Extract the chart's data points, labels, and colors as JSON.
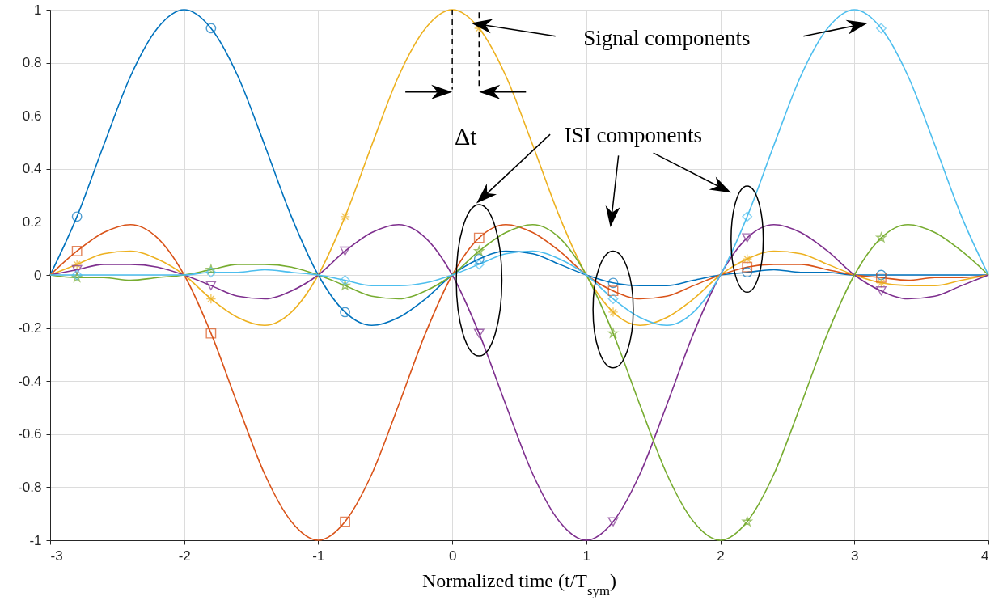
{
  "chart_data": {
    "type": "line",
    "xlabel": "Normalized time (t/T$_{sym}$)",
    "x": [
      -3,
      -2.8,
      -2.6,
      -2.4,
      -2.2,
      -2,
      -1.8,
      -1.6,
      -1.4,
      -1.2,
      -1,
      -0.8,
      -0.6,
      -0.4,
      -0.2,
      0,
      0.2,
      0.4,
      0.6,
      0.8,
      1,
      1.2,
      1.4,
      1.6,
      1.8,
      2,
      2.2,
      2.4,
      2.6,
      2.8,
      3,
      3.2,
      3.4,
      3.6,
      3.8,
      4
    ],
    "xlim": [
      -3,
      4
    ],
    "xticks": [
      -3,
      -2,
      -1,
      0,
      1,
      2,
      3,
      4
    ],
    "ylim": [
      -1,
      1
    ],
    "yticks": [
      -1,
      -0.8,
      -0.6,
      -0.4,
      -0.2,
      0,
      0.2,
      0.4,
      0.6,
      0.8,
      1
    ],
    "grid": true,
    "annotations": [
      {
        "text": "Signal components",
        "x": 0.2,
        "y": 0.93
      },
      "ISI components",
      "Δt"
    ],
    "series": [
      {
        "color": "#0072bd",
        "values": [
          0,
          0.22,
          0.49,
          0.75,
          0.93,
          1,
          0.93,
          0.75,
          0.49,
          0.22,
          0,
          -0.14,
          -0.19,
          -0.16,
          -0.09,
          0,
          0.06,
          0.09,
          0.08,
          0.04,
          0,
          -0.03,
          -0.04,
          -0.04,
          -0.02,
          0,
          0.01,
          0.02,
          0.01,
          0.01,
          0,
          0,
          0,
          0,
          0,
          0
        ]
      },
      {
        "color": "#d95319",
        "values": [
          0,
          0.09,
          0.16,
          0.19,
          0.14,
          0,
          -0.22,
          -0.49,
          -0.75,
          -0.93,
          -1,
          -0.93,
          -0.75,
          -0.49,
          -0.22,
          0,
          0.14,
          0.19,
          0.16,
          0.09,
          0,
          -0.06,
          -0.09,
          -0.08,
          -0.04,
          0,
          0.03,
          0.04,
          0.04,
          0.02,
          0,
          -0.01,
          -0.02,
          -0.01,
          -0.01,
          0
        ]
      },
      {
        "color": "#edb120",
        "values": [
          0,
          0.04,
          0.08,
          0.09,
          0.06,
          0,
          -0.09,
          -0.16,
          -0.19,
          -0.14,
          0,
          0.22,
          0.49,
          0.75,
          0.93,
          1,
          0.93,
          0.75,
          0.49,
          0.22,
          0,
          -0.14,
          -0.19,
          -0.16,
          -0.09,
          0,
          0.06,
          0.09,
          0.08,
          0.04,
          0,
          -0.03,
          -0.04,
          -0.04,
          -0.02,
          0
        ]
      },
      {
        "color": "#7e2f8e",
        "values": [
          0,
          0.02,
          0.04,
          0.04,
          0.03,
          0,
          -0.04,
          -0.08,
          -0.09,
          -0.06,
          0,
          0.09,
          0.16,
          0.19,
          0.14,
          0,
          -0.22,
          -0.49,
          -0.75,
          -0.93,
          -1,
          -0.93,
          -0.75,
          -0.49,
          -0.22,
          0,
          0.14,
          0.19,
          0.16,
          0.09,
          0,
          -0.06,
          -0.09,
          -0.08,
          -0.04,
          0
        ]
      },
      {
        "color": "#77ac30",
        "values": [
          0,
          -0.01,
          -0.01,
          -0.02,
          -0.01,
          0,
          0.02,
          0.04,
          0.04,
          0.03,
          0,
          -0.04,
          -0.08,
          -0.09,
          -0.06,
          0,
          0.09,
          0.16,
          0.19,
          0.14,
          0,
          -0.22,
          -0.49,
          -0.75,
          -0.93,
          -1,
          -0.93,
          -0.75,
          -0.49,
          -0.22,
          0,
          0.14,
          0.19,
          0.16,
          0.09,
          0
        ]
      },
      {
        "color": "#4dbeee",
        "values": [
          0,
          0,
          0,
          0,
          0,
          0,
          0.01,
          0.01,
          0.02,
          0.01,
          0,
          -0.02,
          -0.04,
          -0.04,
          -0.03,
          0,
          0.04,
          0.08,
          0.09,
          0.06,
          0,
          -0.09,
          -0.16,
          -0.19,
          -0.14,
          0,
          0.22,
          0.49,
          0.75,
          0.93,
          1,
          0.93,
          0.75,
          0.49,
          0.22,
          0
        ]
      },
      {
        "type": "scatter",
        "marker": "circle",
        "color": "#0072bd",
        "x": [
          -2.8,
          -1.8,
          -0.8,
          0.2,
          1.2,
          2.2,
          3.2
        ],
        "values": [
          0.22,
          0.93,
          -0.14,
          0.06,
          -0.03,
          0.01,
          0
        ]
      },
      {
        "type": "scatter",
        "marker": "square",
        "color": "#d95319",
        "x": [
          -2.8,
          -1.8,
          -0.8,
          0.2,
          1.2,
          2.2,
          3.2
        ],
        "values": [
          0.09,
          -0.22,
          -0.93,
          0.14,
          -0.06,
          0.03,
          -0.01
        ]
      },
      {
        "type": "scatter",
        "marker": "cross",
        "color": "#edb120",
        "x": [
          -2.8,
          -1.8,
          -0.8,
          0.2,
          1.2,
          2.2,
          3.2
        ],
        "values": [
          0.04,
          -0.09,
          0.22,
          0.93,
          -0.14,
          0.06,
          -0.03
        ]
      },
      {
        "type": "scatter",
        "marker": "triangle",
        "color": "#7e2f8e",
        "x": [
          -2.8,
          -1.8,
          -0.8,
          0.2,
          1.2,
          2.2,
          3.2
        ],
        "values": [
          0.02,
          -0.04,
          0.09,
          -0.22,
          -0.93,
          0.14,
          -0.06
        ]
      },
      {
        "type": "scatter",
        "marker": "star",
        "color": "#77ac30",
        "x": [
          -2.8,
          -1.8,
          -0.8,
          0.2,
          1.2,
          2.2,
          3.2
        ],
        "values": [
          -0.01,
          0.02,
          -0.04,
          0.09,
          -0.22,
          -0.93,
          0.14
        ]
      },
      {
        "type": "scatter",
        "marker": "diamond",
        "color": "#4dbeee",
        "x": [
          -2.8,
          -1.8,
          -0.8,
          0.2,
          1.2,
          2.2,
          3.2
        ],
        "values": [
          0,
          0.01,
          -0.02,
          0.04,
          -0.09,
          0.22,
          0.93
        ]
      }
    ]
  }
}
